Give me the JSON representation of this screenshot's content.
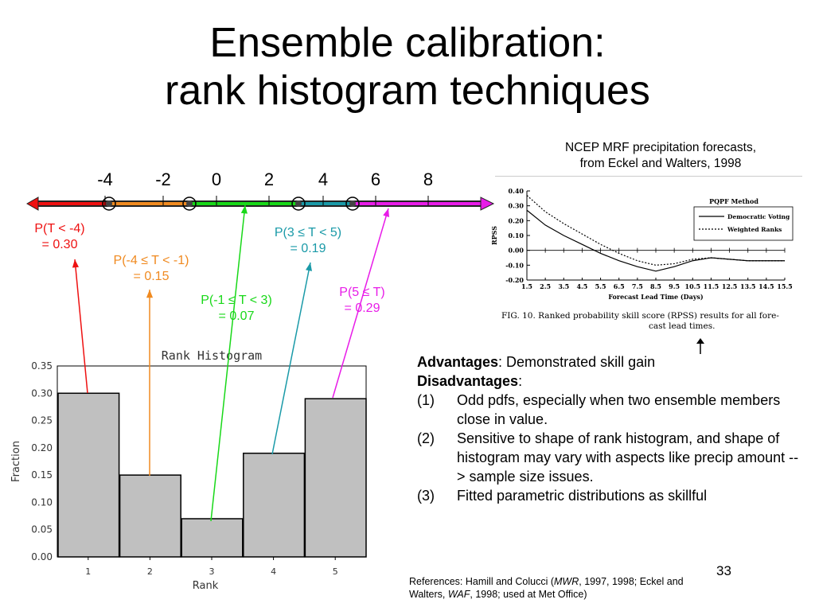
{
  "slide": {
    "title_line1": "Ensemble calibration:",
    "title_line2": "rank histogram techniques",
    "page_number": "33"
  },
  "number_line": {
    "tick_labels": [
      "-4",
      "-2",
      "0",
      "2",
      "4",
      "6",
      "8"
    ],
    "segment_colors": [
      "#ee1111",
      "#f08a20",
      "#18d818",
      "#1a9aa8",
      "#e81ce8"
    ]
  },
  "probabilities": [
    {
      "line1": "P(T < -4)",
      "line2": "= 0.30",
      "color": "#ee1111"
    },
    {
      "line1": "P(-4 ≤ T < -1)",
      "line2": "= 0.15",
      "color": "#f08a20"
    },
    {
      "line1": "P(-1 ≤ T < 3)",
      "line2": "= 0.07",
      "color": "#18d818"
    },
    {
      "line1": "P(3 ≤ T < 5)",
      "line2": "= 0.19",
      "color": "#1a9aa8"
    },
    {
      "line1": "P(5 ≤ T)",
      "line2": "= 0.29",
      "color": "#e81ce8"
    }
  ],
  "chart_data": [
    {
      "type": "bar",
      "title": "Rank Histogram",
      "xlabel": "Rank",
      "ylabel": "Fraction",
      "categories": [
        "1",
        "2",
        "3",
        "4",
        "5"
      ],
      "values": [
        0.3,
        0.15,
        0.07,
        0.19,
        0.29
      ],
      "ylim": [
        0,
        0.35
      ],
      "yticks": [
        "0.00",
        "0.05",
        "0.10",
        "0.15",
        "0.20",
        "0.25",
        "0.30",
        "0.35"
      ],
      "bar_color": "#c0c0c0"
    },
    {
      "type": "line",
      "title": "PQPF Method",
      "xlabel": "Forecast Lead Time (Days)",
      "ylabel": "RPSS",
      "xticks": [
        "1.5",
        "2.5",
        "3.5",
        "4.5",
        "5.5",
        "6.5",
        "7.5",
        "8.5",
        "9.5",
        "10.5",
        "11.5",
        "12.5",
        "13.5",
        "14.5",
        "15.5"
      ],
      "yticks": [
        "0.40",
        "0.30",
        "0.20",
        "0.10",
        "0.00",
        "-0.10",
        "-0.20"
      ],
      "xlim": [
        1.5,
        15.5
      ],
      "ylim": [
        -0.2,
        0.4
      ],
      "series": [
        {
          "name": "Democratic Voting",
          "style": "solid",
          "x": [
            1.5,
            2.5,
            3.5,
            4.5,
            5.5,
            6.5,
            7.5,
            8.5,
            9.5,
            10.5,
            11.5,
            12.5,
            13.5,
            14.5,
            15.5
          ],
          "y": [
            0.27,
            0.17,
            0.1,
            0.04,
            -0.02,
            -0.07,
            -0.11,
            -0.14,
            -0.11,
            -0.07,
            -0.05,
            -0.06,
            -0.07,
            -0.07,
            -0.07
          ]
        },
        {
          "name": "Weighted Ranks",
          "style": "dotted",
          "x": [
            1.5,
            2.5,
            3.5,
            4.5,
            5.5,
            6.5,
            7.5,
            8.5,
            9.5,
            10.5,
            11.5,
            12.5,
            13.5,
            14.5,
            15.5
          ],
          "y": [
            0.37,
            0.26,
            0.18,
            0.11,
            0.04,
            -0.02,
            -0.07,
            -0.1,
            -0.09,
            -0.06,
            -0.05,
            -0.06,
            -0.07,
            -0.07,
            -0.07
          ]
        }
      ],
      "caption": "FIG. 10. Ranked probability skill score (RPSS) results for all fore-cast lead times."
    }
  ],
  "rpss_source": {
    "line1": "NCEP MRF precipitation forecasts,",
    "line2": "from Eckel and Walters, 1998"
  },
  "assessment": {
    "advantages_label": "Advantages",
    "advantages_text": ": Demonstrated skill gain",
    "disadvantages_label": "Disadvantages",
    "disadvantages_colon": ":",
    "items": [
      {
        "num": "(1)",
        "text": "Odd pdfs, especially when two ensemble members close in value."
      },
      {
        "num": "(2)",
        "text": "Sensitive to shape of rank histogram, and shape of histogram may vary with aspects like precip amount --> sample size issues."
      },
      {
        "num": "(3)",
        "text": "Fitted parametric distributions as skillful"
      }
    ]
  },
  "references": {
    "part1": "References: Hamill and Colucci (",
    "mwr": "MWR",
    "part2": ", 1997, 1998; Eckel and Walters, ",
    "waf": "WAF",
    "part3": ", 1998; used at Met Office)"
  }
}
